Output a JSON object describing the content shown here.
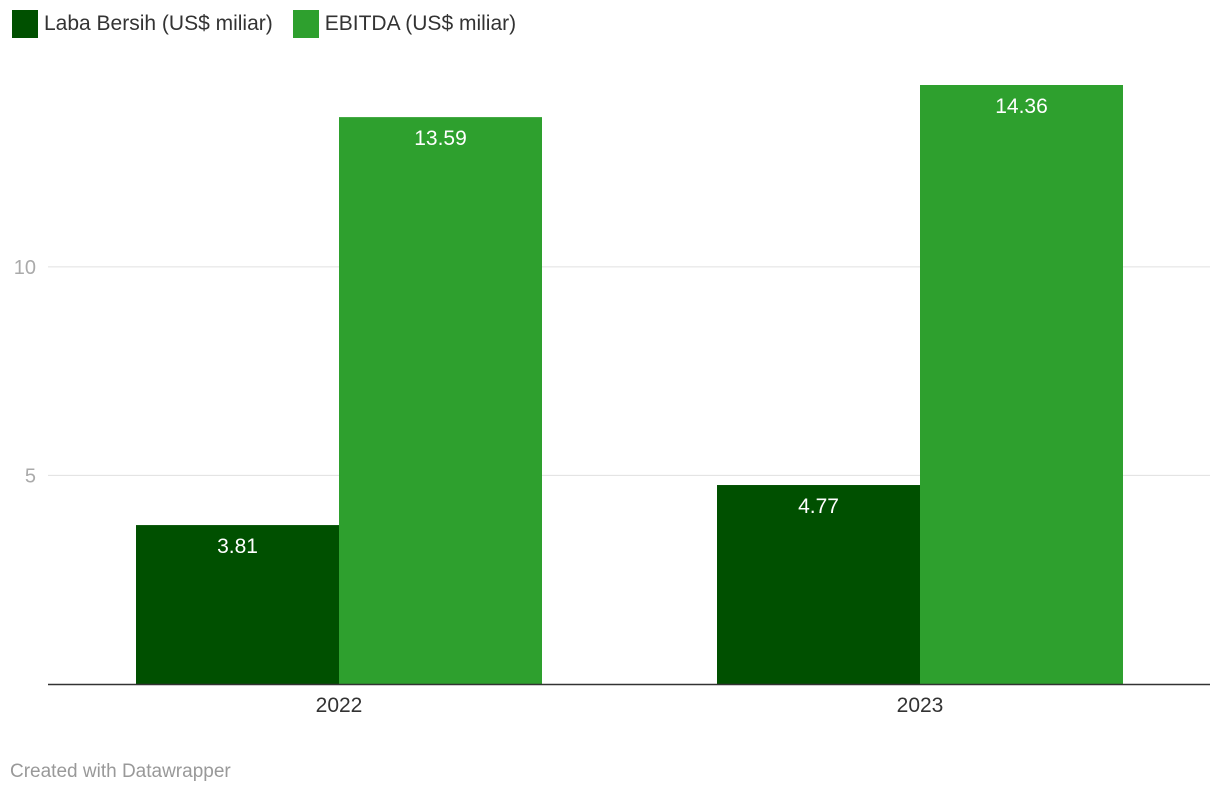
{
  "chart_data": {
    "type": "bar",
    "title": "",
    "xlabel": "",
    "ylabel": "",
    "categories": [
      "2022",
      "2023"
    ],
    "series": [
      {
        "name": "Laba Bersih (US$ miliar)",
        "values": [
          3.81,
          4.77
        ],
        "color": "#005000",
        "value_labels": [
          "3.81",
          "4.77"
        ]
      },
      {
        "name": "EBITDA (US$ miliar)",
        "values": [
          13.59,
          14.36
        ],
        "color": "#2ea02e",
        "value_labels": [
          "13.59",
          "14.36"
        ]
      }
    ],
    "ylim": [
      0,
      14.36
    ],
    "yticks": [
      5,
      10
    ],
    "ytick_labels": [
      "5",
      "10"
    ],
    "grid": true,
    "legend": "top-left"
  },
  "footer": {
    "credit": "Created with Datawrapper"
  }
}
